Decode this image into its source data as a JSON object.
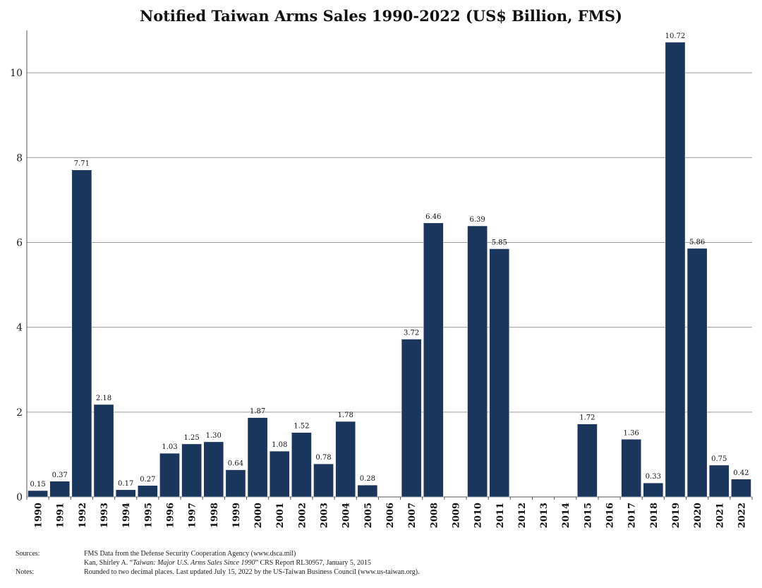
{
  "chart_data": {
    "type": "bar",
    "title": "Notified Taiwan Arms Sales 1990-2022 (US$ Billion, FMS)",
    "xlabel": "",
    "ylabel": "",
    "ylim": [
      0,
      11
    ],
    "yticks": [
      0,
      2,
      4,
      6,
      8,
      10
    ],
    "grid": true,
    "bar_color": "#1b365d",
    "categories": [
      "1990",
      "1991",
      "1992",
      "1993",
      "1994",
      "1995",
      "1996",
      "1997",
      "1998",
      "1999",
      "2000",
      "2001",
      "2002",
      "2003",
      "2004",
      "2005",
      "2006",
      "2007",
      "2008",
      "2009",
      "2010",
      "2011",
      "2012",
      "2013",
      "2014",
      "2015",
      "2016",
      "2017",
      "2018",
      "2019",
      "2020",
      "2021",
      "2022"
    ],
    "values": [
      0.15,
      0.37,
      7.71,
      2.18,
      0.17,
      0.27,
      1.03,
      1.25,
      1.3,
      0.64,
      1.87,
      1.08,
      1.52,
      0.78,
      1.78,
      0.28,
      null,
      3.72,
      6.46,
      null,
      6.39,
      5.85,
      null,
      null,
      null,
      1.72,
      null,
      1.36,
      0.33,
      10.72,
      5.86,
      0.75,
      0.42
    ],
    "value_labels": [
      "0.15",
      "0.37",
      "7.71",
      "2.18",
      "0.17",
      "0.27",
      "1.03",
      "1.25",
      "1.30",
      "0.64",
      "1.87",
      "1.08",
      "1.52",
      "0.78",
      "1.78",
      "0.28",
      "",
      "3.72",
      "6.46",
      "",
      "6.39",
      "5.85",
      "",
      "",
      "",
      "1.72",
      "",
      "1.36",
      "0.33",
      "10.72",
      "5.86",
      "0.75",
      "0.42"
    ]
  },
  "footer": {
    "sources_label": "Sources:",
    "source_1": "FMS Data from the Defense Security Cooperation Agency (www.dsca.mil)",
    "source_2_prefix": "Kan, Shirley A. “",
    "source_2_italic": "Taiwan: Major U.S. Arms Sales Since 1990",
    "source_2_suffix": "” CRS Report RL30957, January 5, 2015",
    "notes_label": "Notes:",
    "notes_text": "Rounded to two decimal places. Last updated July 15, 2022 by the US-Taiwan Business Council (www.us-taiwan.org)."
  }
}
